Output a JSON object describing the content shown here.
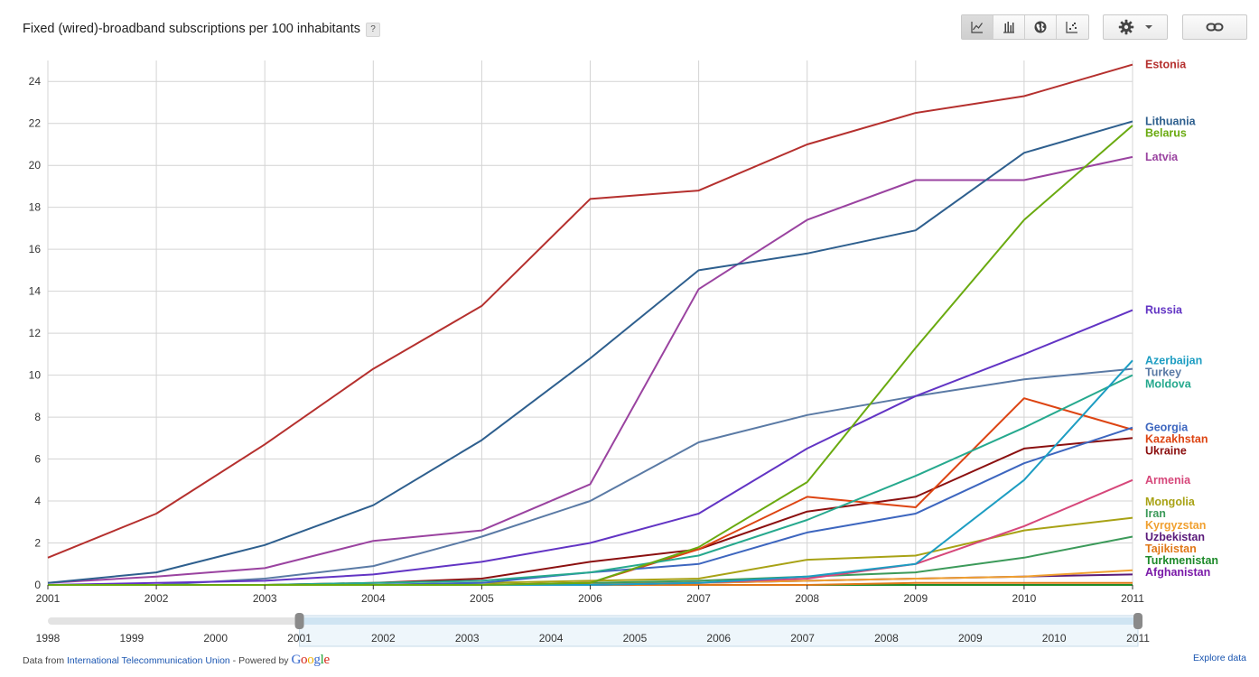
{
  "title": "Fixed (wired)-broadband subscriptions per 100 inhabitants",
  "help_label": "?",
  "toolbar": {
    "chart_types": [
      "line-chart-icon",
      "bar-chart-icon",
      "globe-map-icon",
      "scatter-chart-icon"
    ],
    "active": "line-chart-icon"
  },
  "footer": {
    "prefix": "Data from ",
    "source": "International Telecommunication Union",
    "powered": " - Powered by ",
    "google": "Google",
    "explore": "Explore data"
  },
  "timeline": {
    "years": [
      "1998",
      "1999",
      "2000",
      "2001",
      "2002",
      "2003",
      "2004",
      "2005",
      "2006",
      "2007",
      "2008",
      "2009",
      "2010",
      "2011"
    ],
    "selected_range": [
      "2001",
      "2011"
    ]
  },
  "chart_data": {
    "type": "line",
    "title": "Fixed (wired)-broadband subscriptions per 100 inhabitants",
    "xlabel": "",
    "ylabel": "",
    "x": [
      2001,
      2002,
      2003,
      2004,
      2005,
      2006,
      2007,
      2008,
      2009,
      2010,
      2011
    ],
    "x_ticks": [
      "2001",
      "2002",
      "2003",
      "2004",
      "2005",
      "2006",
      "2007",
      "2008",
      "2009",
      "2010",
      "2011"
    ],
    "y_ticks": [
      "0",
      "2",
      "4",
      "6",
      "8",
      "10",
      "12",
      "14",
      "16",
      "18",
      "20",
      "22",
      "24"
    ],
    "ylim": [
      0,
      25
    ],
    "grid": true,
    "legend": "right",
    "series": [
      {
        "name": "Estonia",
        "color": "#b5302e",
        "values": [
          1.3,
          3.4,
          6.7,
          10.3,
          13.3,
          18.4,
          18.8,
          21.0,
          22.5,
          23.3,
          24.8
        ]
      },
      {
        "name": "Lithuania",
        "color": "#2e5f8e",
        "values": [
          0.1,
          0.6,
          1.9,
          3.8,
          6.9,
          10.8,
          15.0,
          15.8,
          16.9,
          20.6,
          22.1
        ]
      },
      {
        "name": "Belarus",
        "color": "#6aaa10",
        "values": [
          0.0,
          0.0,
          0.0,
          0.0,
          0.0,
          0.1,
          1.8,
          4.9,
          11.3,
          17.4,
          21.9
        ]
      },
      {
        "name": "Latvia",
        "color": "#9a43a0",
        "values": [
          0.1,
          0.4,
          0.8,
          2.1,
          2.6,
          4.8,
          14.1,
          17.4,
          19.3,
          19.3,
          20.4
        ]
      },
      {
        "name": "Russia",
        "color": "#6234c4",
        "values": [
          0.0,
          0.1,
          0.2,
          0.5,
          1.1,
          2.0,
          3.4,
          6.5,
          9.0,
          11.0,
          13.1
        ]
      },
      {
        "name": "Azerbaijan",
        "color": "#1d9dc2",
        "values": [
          0.0,
          0.0,
          0.0,
          0.0,
          0.0,
          0.0,
          0.1,
          0.4,
          1.0,
          5.0,
          10.7
        ]
      },
      {
        "name": "Turkey",
        "color": "#5a7aa5",
        "values": [
          0.0,
          0.0,
          0.3,
          0.9,
          2.3,
          4.0,
          6.8,
          8.1,
          9.0,
          9.8,
          10.3
        ]
      },
      {
        "name": "Moldova",
        "color": "#26a98e",
        "values": [
          0.0,
          0.0,
          0.0,
          0.1,
          0.2,
          0.6,
          1.4,
          3.1,
          5.2,
          7.5,
          10.0
        ]
      },
      {
        "name": "Georgia",
        "color": "#3d66bf",
        "values": [
          0.0,
          0.0,
          0.0,
          0.0,
          0.1,
          0.6,
          1.0,
          2.5,
          3.4,
          5.8,
          7.5
        ]
      },
      {
        "name": "Kazakhstan",
        "color": "#dd4412",
        "values": [
          0.0,
          0.0,
          0.0,
          0.0,
          0.0,
          0.1,
          1.7,
          4.2,
          3.7,
          8.9,
          7.4
        ]
      },
      {
        "name": "Ukraine",
        "color": "#8b1010",
        "values": [
          0.0,
          0.0,
          0.0,
          0.1,
          0.3,
          1.1,
          1.7,
          3.5,
          4.2,
          6.5,
          7.0
        ]
      },
      {
        "name": "Armenia",
        "color": "#d6477a",
        "values": [
          0.0,
          0.0,
          0.0,
          0.0,
          0.0,
          0.0,
          0.1,
          0.3,
          1.0,
          2.8,
          5.0
        ]
      },
      {
        "name": "Mongolia",
        "color": "#a8a215",
        "values": [
          0.0,
          0.0,
          0.0,
          0.0,
          0.1,
          0.2,
          0.3,
          1.2,
          1.4,
          2.6,
          3.2
        ]
      },
      {
        "name": "Iran",
        "color": "#3c9a5a",
        "values": [
          0.0,
          0.0,
          0.0,
          0.0,
          0.0,
          0.1,
          0.2,
          0.4,
          0.6,
          1.3,
          2.3
        ]
      },
      {
        "name": "Kyrgyzstan",
        "color": "#f0a030",
        "values": [
          0.0,
          0.0,
          0.0,
          0.0,
          0.0,
          0.1,
          0.1,
          0.2,
          0.3,
          0.4,
          0.7
        ]
      },
      {
        "name": "Uzbekistan",
        "color": "#5a1a7a",
        "values": [
          0.0,
          0.0,
          0.0,
          0.0,
          0.0,
          0.0,
          0.1,
          0.2,
          0.3,
          0.4,
          0.5
        ]
      },
      {
        "name": "Tajikistan",
        "color": "#e07818",
        "values": [
          0.0,
          0.0,
          0.0,
          0.0,
          0.0,
          0.0,
          0.0,
          0.0,
          0.1,
          0.1,
          0.1
        ]
      },
      {
        "name": "Turkmenistan",
        "color": "#1e8a2a",
        "values": [
          0.0,
          0.0,
          0.0,
          0.0,
          0.0,
          0.0,
          0.0,
          0.0,
          0.0,
          0.0,
          0.0
        ]
      },
      {
        "name": "Afghanistan",
        "color": "#7a1aa8",
        "values": [
          0.0,
          0.0,
          0.0,
          0.0,
          0.0,
          0.0,
          0.0,
          0.0,
          0.0,
          0.0,
          0.0
        ]
      }
    ]
  }
}
